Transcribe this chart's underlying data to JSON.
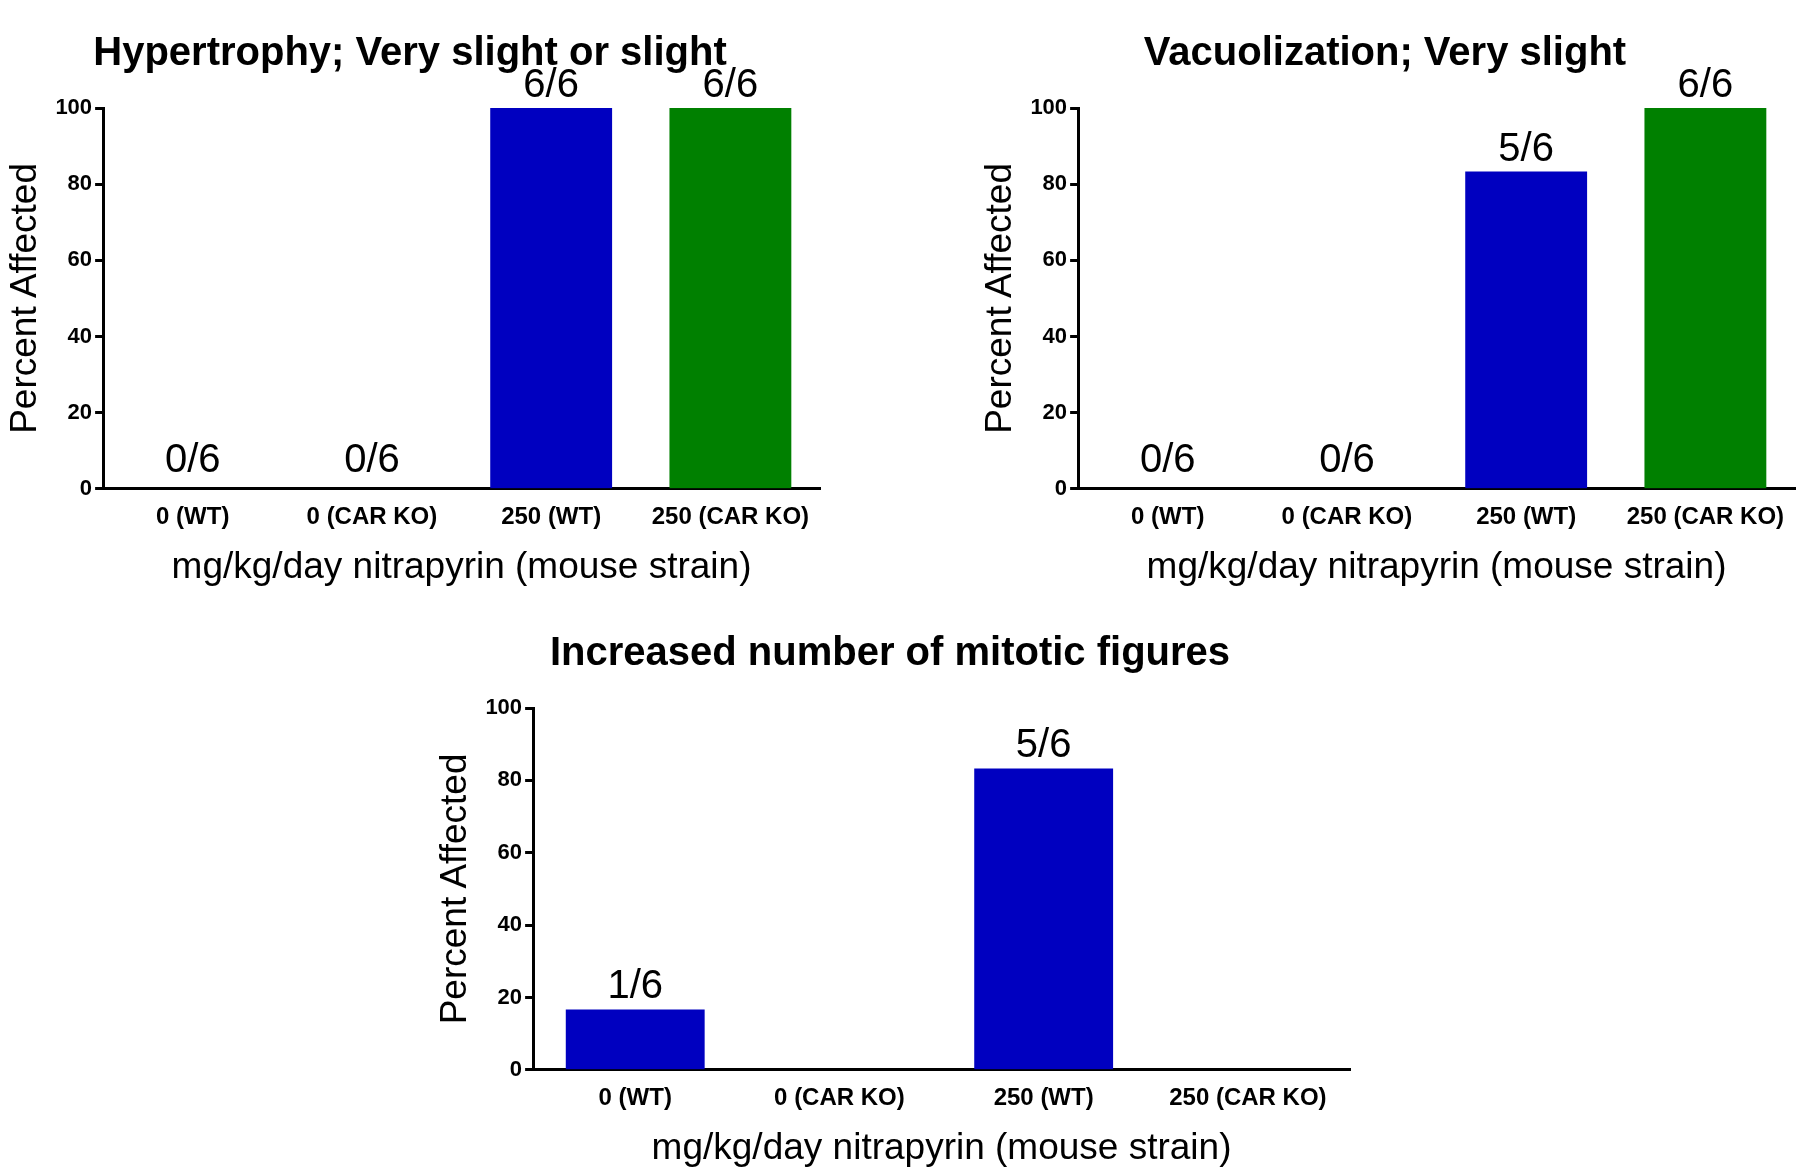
{
  "chart_data": [
    {
      "type": "bar",
      "title": "Hypertrophy; Very slight or slight",
      "xlabel": "mg/kg/day nitrapyrin (mouse strain)",
      "ylabel": "Percent Affected",
      "categories": [
        "0 (WT)",
        "0 (CAR KO)",
        "250 (WT)",
        "250 (CAR KO)"
      ],
      "values": [
        0,
        0,
        100,
        100
      ],
      "colors": [
        "#0000c0",
        "#008000",
        "#0000c0",
        "#008000"
      ],
      "ylim": [
        0,
        100
      ],
      "yticks": [
        0,
        20,
        40,
        60,
        80,
        100
      ],
      "grid": false,
      "legend": false,
      "annotations": [
        {
          "text": "0/6",
          "x": "0 (WT)",
          "y": 0
        },
        {
          "text": "0/6",
          "x": "0 (CAR KO)",
          "y": 0
        },
        {
          "text": "6/6",
          "x": "250 (WT)",
          "y": 100
        },
        {
          "text": "6/6",
          "x": "250 (CAR KO)",
          "y": 100
        }
      ]
    },
    {
      "type": "bar",
      "title": "Vacuolization; Very slight",
      "xlabel": "mg/kg/day nitrapyrin (mouse strain)",
      "ylabel": "Percent Affected",
      "categories": [
        "0 (WT)",
        "0 (CAR KO)",
        "250 (WT)",
        "250 (CAR KO)"
      ],
      "values": [
        0,
        0,
        83.3,
        100
      ],
      "colors": [
        "#0000c0",
        "#008000",
        "#0000c0",
        "#008000"
      ],
      "ylim": [
        0,
        100
      ],
      "yticks": [
        0,
        20,
        40,
        60,
        80,
        100
      ],
      "grid": false,
      "legend": false,
      "annotations": [
        {
          "text": "0/6",
          "x": "0 (WT)",
          "y": 0
        },
        {
          "text": "0/6",
          "x": "0 (CAR KO)",
          "y": 0
        },
        {
          "text": "5/6",
          "x": "250 (WT)",
          "y": 83.3
        },
        {
          "text": "6/6",
          "x": "250 (CAR KO)",
          "y": 100
        }
      ]
    },
    {
      "type": "bar",
      "title": "Increased number of mitotic figures",
      "xlabel": "mg/kg/day nitrapyrin (mouse strain)",
      "ylabel": "Percent Affected",
      "categories": [
        "0 (WT)",
        "0 (CAR KO)",
        "250 (WT)",
        "250 (CAR KO)"
      ],
      "values": [
        16.7,
        0,
        83.3,
        0
      ],
      "colors": [
        "#0000c0",
        "#0000c0",
        "#0000c0",
        "#0000c0"
      ],
      "ylim": [
        0,
        100
      ],
      "yticks": [
        0,
        20,
        40,
        60,
        80,
        100
      ],
      "grid": false,
      "legend": false,
      "annotations": [
        {
          "text": "1/6",
          "x": "0 (WT)",
          "y": 16.7
        },
        {
          "text": "5/6",
          "x": "250 (WT)",
          "y": 83.3
        }
      ]
    }
  ]
}
